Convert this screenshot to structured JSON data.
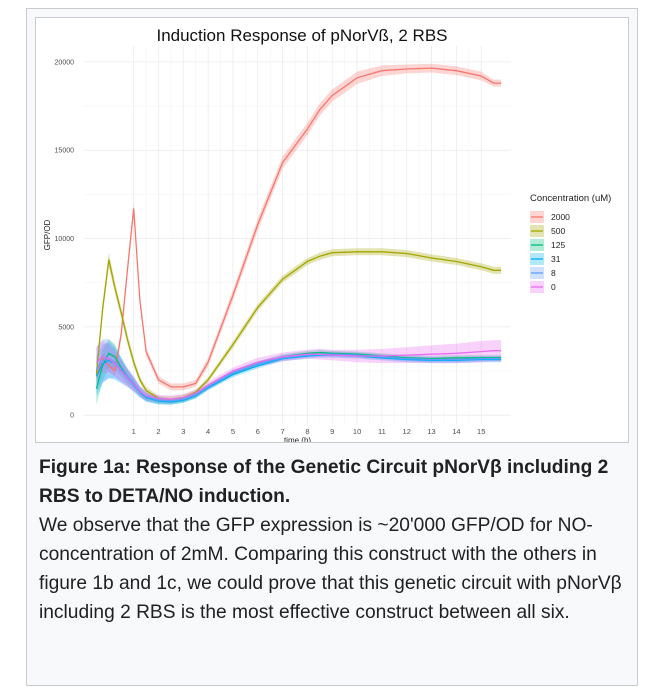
{
  "caption": {
    "title": "Figure 1a: Response of the Genetic Circuit pNorVβ including 2 RBS to DETA/NO induction.",
    "body": "We observe that the GFP expression is ~20'000 GFP/OD for NO-concentration of 2mM. Comparing this construct with the others in figure 1b and 1c, we could prove that this genetic circuit with pNorVβ including 2 RBS is the most effective construct between all six."
  },
  "chart_data": {
    "type": "line",
    "title": "Induction Response of pNorVß, 2 RBS",
    "xlabel": "time (h)",
    "ylabel": "GFP/OD",
    "xlim": [
      -1,
      16.2
    ],
    "ylim": [
      -500,
      20900
    ],
    "xticks": [
      1,
      2,
      3,
      4,
      5,
      6,
      7,
      8,
      9,
      10,
      11,
      12,
      13,
      14,
      15
    ],
    "yticks": [
      0,
      5000,
      10000,
      15000,
      20000
    ],
    "grid": true,
    "legend": {
      "title": "Concentration (uM)",
      "position": "right"
    },
    "x": [
      -0.5,
      -0.25,
      0,
      0.25,
      0.5,
      0.75,
      1,
      1.25,
      1.5,
      2,
      2.5,
      3,
      3.5,
      4,
      5,
      6,
      7,
      8,
      8.5,
      9,
      10,
      11,
      12,
      13,
      14,
      15,
      15.5,
      15.8
    ],
    "series": [
      {
        "name": "2000",
        "color": "#F8766D",
        "values": [
          2200,
          3200,
          2800,
          2500,
          4600,
          8200,
          11700,
          6500,
          3600,
          2000,
          1600,
          1600,
          1800,
          3000,
          6800,
          10800,
          14300,
          16200,
          17300,
          18100,
          19100,
          19500,
          19600,
          19650,
          19500,
          19200,
          18800,
          18800
        ],
        "band": [
          300,
          300,
          300,
          300,
          300,
          300,
          300,
          300,
          250,
          200,
          200,
          200,
          200,
          250,
          300,
          350,
          350,
          350,
          350,
          350,
          350,
          300,
          250,
          250,
          250,
          250,
          200,
          200
        ]
      },
      {
        "name": "500",
        "color": "#A3A500",
        "values": [
          2300,
          6000,
          8800,
          7200,
          5800,
          4300,
          3000,
          2000,
          1400,
          950,
          900,
          1000,
          1300,
          2000,
          4000,
          6100,
          7700,
          8700,
          9000,
          9200,
          9250,
          9250,
          9150,
          8900,
          8700,
          8400,
          8200,
          8200
        ],
        "band": [
          400,
          400,
          400,
          350,
          300,
          300,
          250,
          200,
          200,
          150,
          150,
          150,
          150,
          150,
          200,
          200,
          200,
          200,
          200,
          200,
          200,
          200,
          200,
          200,
          200,
          200,
          200,
          200
        ]
      },
      {
        "name": "125",
        "color": "#00BF7D",
        "values": [
          1500,
          2800,
          3500,
          3300,
          2700,
          2200,
          1800,
          1300,
          1000,
          800,
          750,
          850,
          1100,
          1600,
          2400,
          2900,
          3300,
          3500,
          3550,
          3500,
          3450,
          3350,
          3250,
          3200,
          3250,
          3250,
          3250,
          3250
        ],
        "band": [
          900,
          900,
          800,
          700,
          500,
          400,
          300,
          250,
          200,
          150,
          150,
          150,
          150,
          150,
          150,
          150,
          150,
          150,
          150,
          150,
          150,
          150,
          150,
          150,
          150,
          150,
          150,
          150
        ]
      },
      {
        "name": "31",
        "color": "#00B0F6",
        "values": [
          2200,
          2900,
          3100,
          2900,
          2500,
          2100,
          1700,
          1300,
          1000,
          800,
          750,
          850,
          1100,
          1550,
          2300,
          2800,
          3200,
          3350,
          3400,
          3400,
          3350,
          3250,
          3150,
          3100,
          3100,
          3150,
          3150,
          3150
        ],
        "band": [
          1100,
          1100,
          1000,
          900,
          700,
          500,
          400,
          300,
          250,
          200,
          150,
          150,
          150,
          150,
          150,
          150,
          150,
          150,
          150,
          150,
          150,
          150,
          150,
          150,
          150,
          150,
          150,
          150
        ]
      },
      {
        "name": "8",
        "color": "#619CFF",
        "values": [
          2600,
          3100,
          3200,
          3000,
          2600,
          2200,
          1800,
          1350,
          1050,
          850,
          800,
          900,
          1150,
          1600,
          2400,
          2900,
          3250,
          3400,
          3450,
          3450,
          3400,
          3300,
          3200,
          3150,
          3150,
          3200,
          3200,
          3200
        ],
        "band": [
          1200,
          1200,
          1100,
          900,
          700,
          500,
          400,
          300,
          250,
          200,
          150,
          150,
          150,
          150,
          150,
          150,
          150,
          150,
          150,
          150,
          150,
          150,
          150,
          150,
          150,
          150,
          150,
          150
        ]
      },
      {
        "name": "0",
        "color": "#E76BF3",
        "values": [
          3000,
          3300,
          3200,
          2900,
          2500,
          2100,
          1750,
          1350,
          1100,
          950,
          900,
          1000,
          1250,
          1700,
          2500,
          3000,
          3300,
          3450,
          3450,
          3400,
          3350,
          3350,
          3400,
          3450,
          3500,
          3600,
          3650,
          3650
        ],
        "band": [
          900,
          900,
          800,
          700,
          600,
          500,
          400,
          300,
          250,
          200,
          200,
          200,
          200,
          200,
          200,
          250,
          250,
          250,
          300,
          300,
          350,
          400,
          450,
          500,
          550,
          600,
          600,
          600
        ]
      }
    ]
  }
}
